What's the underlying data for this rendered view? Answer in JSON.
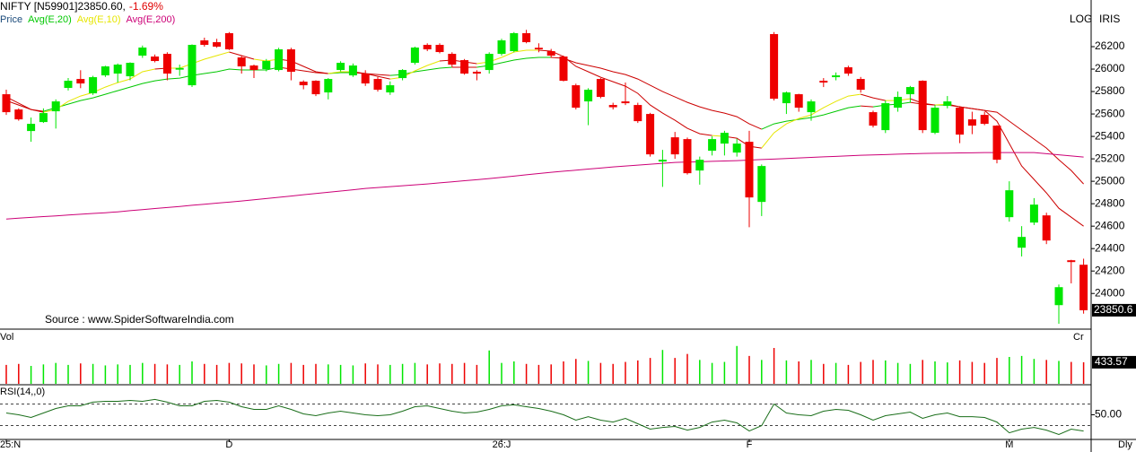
{
  "header": {
    "symbol": "NIFTY [N59901]23850.60,",
    "change": "-1.69%",
    "price_label": "Price",
    "log": "LOG",
    "iris": "IRIS",
    "source": "Source : www.SpiderSoftwareIndia.com",
    "period": "Dly"
  },
  "chart_data": [
    {
      "type": "candlestick",
      "categories": [
        "25:N",
        null,
        null,
        null,
        null,
        null,
        null,
        null,
        null,
        null,
        null,
        null,
        null,
        null,
        null,
        null,
        null,
        null,
        "D",
        null,
        null,
        null,
        null,
        null,
        null,
        null,
        null,
        null,
        null,
        null,
        null,
        null,
        null,
        null,
        null,
        null,
        null,
        null,
        null,
        null,
        "26:J",
        null,
        null,
        null,
        null,
        null,
        null,
        null,
        null,
        null,
        null,
        null,
        null,
        null,
        null,
        null,
        null,
        null,
        null,
        null,
        "F",
        null,
        null,
        null,
        null,
        null,
        null,
        null,
        null,
        null,
        null,
        null,
        null,
        null,
        null,
        null,
        null,
        null,
        null,
        null,
        null,
        "M",
        null,
        null,
        null,
        null,
        null,
        null
      ],
      "open": [
        25776,
        25640,
        25448,
        25528,
        25624,
        25832,
        25912,
        25784,
        25944,
        25960,
        25936,
        26120,
        26112,
        26136,
        25995,
        25856,
        26256,
        26240,
        26320,
        26104,
        26032,
        26000,
        25992,
        26176,
        25888,
        25896,
        25792,
        25992,
        25944,
        25960,
        25912,
        25792,
        25920,
        26056,
        26216,
        26216,
        26136,
        26080,
        25976,
        25992,
        26136,
        26160,
        26320,
        26190,
        26160,
        26112,
        25856,
        25712,
        25912,
        25680,
        25712,
        25680,
        25600,
        25176,
        25392,
        25376,
        25096,
        25272,
        25336,
        25256,
        25352,
        24816,
        26312,
        25696,
        25776,
        25616,
        25896,
        25928,
        26016,
        25912,
        25616,
        25456,
        25656,
        25776,
        25896,
        25432,
        25672,
        25656,
        25552,
        25592,
        25496,
        24680,
        24408,
        24632,
        24696,
        23896,
        24296,
        24256
      ],
      "high": [
        25816,
        25650,
        25568,
        25650,
        25730,
        25920,
        25990,
        25940,
        26030,
        26050,
        26060,
        26210,
        26130,
        26150,
        26040,
        26220,
        26280,
        26270,
        26330,
        26120,
        26040,
        26090,
        26190,
        26190,
        25900,
        25900,
        25920,
        26070,
        26050,
        25990,
        25930,
        25890,
        26000,
        26200,
        26230,
        26230,
        26150,
        26090,
        25990,
        26150,
        26270,
        26330,
        26350,
        26230,
        26180,
        26120,
        25870,
        25830,
        25920,
        25700,
        25880,
        25700,
        25610,
        25280,
        25440,
        25390,
        25220,
        25400,
        25450,
        25380,
        25450,
        25150,
        26330,
        25800,
        25780,
        25730,
        25920,
        25970,
        26030,
        25930,
        25630,
        25720,
        25800,
        25850,
        25900,
        25680,
        25760,
        25670,
        25620,
        25620,
        25500,
        25000,
        24600,
        24850,
        24720,
        24080,
        24300,
        24310
      ],
      "low": [
        25592,
        25540,
        25352,
        25520,
        25470,
        25810,
        25830,
        25770,
        25930,
        25880,
        25900,
        26100,
        26060,
        25900,
        25940,
        25840,
        26200,
        26190,
        26170,
        25960,
        25920,
        25980,
        25980,
        25900,
        25820,
        25760,
        25730,
        25980,
        25930,
        25850,
        25800,
        25770,
        25900,
        26040,
        26160,
        26140,
        26020,
        25950,
        25900,
        25960,
        26120,
        26150,
        26230,
        26150,
        26100,
        25890,
        25640,
        25500,
        25740,
        25640,
        25680,
        25520,
        25220,
        24950,
        25200,
        25060,
        24970,
        25230,
        25230,
        25220,
        24590,
        24690,
        25720,
        25600,
        25620,
        25540,
        25840,
        25900,
        25940,
        25790,
        25480,
        25430,
        25620,
        25700,
        25430,
        25420,
        25650,
        25340,
        25420,
        25500,
        25160,
        24640,
        24330,
        24610,
        24440,
        23730,
        24090,
        23820
      ],
      "close": [
        25616,
        25552,
        25512,
        25608,
        25712,
        25896,
        25872,
        25928,
        26024,
        26040,
        26056,
        26192,
        26072,
        25960,
        26010,
        26216,
        26216,
        26200,
        26176,
        26024,
        25992,
        26072,
        26176,
        25976,
        25856,
        25776,
        25912,
        26056,
        26032,
        25872,
        25816,
        25856,
        25992,
        26192,
        26176,
        26152,
        26040,
        25960,
        25960,
        26136,
        26256,
        26320,
        26240,
        26176,
        26120,
        25896,
        25656,
        25816,
        25752,
        25660,
        25696,
        25536,
        25240,
        25192,
        25240,
        25072,
        25192,
        25376,
        25432,
        25336,
        24856,
        25136,
        25736,
        25792,
        25656,
        25712,
        25880,
        25944,
        25960,
        25816,
        25496,
        25696,
        25752,
        25840,
        25456,
        25656,
        25712,
        25416,
        25496,
        25512,
        25192,
        24920,
        24504,
        24792,
        24472,
        24056,
        24280,
        23850.6
      ],
      "up_color": "#00e600",
      "down_color": "#ee0000",
      "ylim": [
        23690,
        26520
      ],
      "yticks": [
        24000,
        24200,
        24400,
        24600,
        24800,
        25000,
        25200,
        25400,
        25600,
        25800,
        26000,
        26200
      ],
      "series": [
        {
          "name": "Avg(E,20)",
          "color": "#00c800",
          "below_color": "#cc0000",
          "values": [
            25720,
            25680,
            25640,
            25624,
            25656,
            25688,
            25720,
            25744,
            25776,
            25808,
            25840,
            25872,
            25896,
            25912,
            25920,
            25944,
            25960,
            25976,
            26000,
            25992,
            25992,
            25992,
            26016,
            26000,
            25984,
            25968,
            25960,
            25968,
            25968,
            25960,
            25952,
            25944,
            25952,
            25976,
            25992,
            26008,
            26016,
            26016,
            26016,
            26032,
            26056,
            26080,
            26096,
            26104,
            26104,
            26096,
            26056,
            26032,
            26008,
            25976,
            25952,
            25912,
            25856,
            25800,
            25752,
            25704,
            25664,
            25632,
            25608,
            25576,
            25512,
            25464,
            25512,
            25536,
            25552,
            25568,
            25592,
            25624,
            25656,
            25672,
            25664,
            25680,
            25688,
            25704,
            25688,
            25680,
            25680,
            25664,
            25648,
            25632,
            25616,
            25536,
            25456,
            25376,
            25296,
            25192,
            25096,
            24976
          ]
        },
        {
          "name": "Avg(E,10)",
          "color": "#e6e600",
          "below_color": "#cc0000",
          "values": [
            25752,
            25696,
            25640,
            25616,
            25640,
            25712,
            25760,
            25792,
            25840,
            25880,
            25912,
            25976,
            26000,
            26008,
            26008,
            26048,
            26088,
            26120,
            26152,
            26120,
            26088,
            26072,
            26088,
            26072,
            26024,
            25976,
            25960,
            25976,
            25976,
            25960,
            25936,
            25912,
            25928,
            25984,
            26032,
            26072,
            26080,
            26064,
            26048,
            26064,
            26104,
            26152,
            26168,
            26168,
            26160,
            26112,
            26024,
            25976,
            25928,
            25888,
            25848,
            25784,
            25680,
            25608,
            25544,
            25472,
            25424,
            25408,
            25400,
            25384,
            25312,
            25296,
            25432,
            25512,
            25560,
            25592,
            25656,
            25712,
            25760,
            25776,
            25744,
            25720,
            25720,
            25736,
            25696,
            25680,
            25688,
            25664,
            25648,
            25632,
            25536,
            25336,
            25136,
            25016,
            24896,
            24760,
            24680,
            24600
          ]
        },
        {
          "name": "Avg(E,200)",
          "color": "#cc0077",
          "values": [
            24664,
            24671,
            24678,
            24685,
            24692,
            24699,
            24706,
            24713,
            24720,
            24728,
            24738,
            24747,
            24757,
            24766,
            24776,
            24786,
            24795,
            24805,
            24814,
            24824,
            24835,
            24846,
            24857,
            24868,
            24880,
            24891,
            24902,
            24913,
            24924,
            24936,
            24944,
            24952,
            24960,
            24968,
            24976,
            24986,
            24995,
            25005,
            25014,
            25024,
            25035,
            25046,
            25058,
            25069,
            25080,
            25090,
            25099,
            25109,
            25118,
            25128,
            25136,
            25144,
            25152,
            25160,
            25168,
            25171,
            25174,
            25178,
            25181,
            25184,
            25189,
            25194,
            25198,
            25203,
            25208,
            25213,
            25218,
            25222,
            25227,
            25232,
            25235,
            25238,
            25242,
            25245,
            25248,
            25250,
            25251,
            25253,
            25254,
            25256,
            25256,
            25256,
            25256,
            25256,
            25246,
            25236,
            25226,
            25216
          ]
        }
      ]
    },
    {
      "type": "bar",
      "title": "Vol",
      "unit": "Cr",
      "values": [
        380,
        400,
        360,
        390,
        420,
        380,
        410,
        400,
        370,
        390,
        380,
        420,
        400,
        390,
        380,
        450,
        400,
        380,
        420,
        410,
        390,
        370,
        400,
        420,
        380,
        400,
        390,
        380,
        370,
        410,
        390,
        380,
        400,
        420,
        390,
        410,
        400,
        420,
        380,
        670,
        420,
        450,
        400,
        380,
        390,
        450,
        500,
        460,
        420,
        400,
        440,
        470,
        520,
        680,
        520,
        600,
        480,
        420,
        440,
        760,
        560,
        480,
        720,
        470,
        450,
        480,
        400,
        420,
        380,
        440,
        480,
        470,
        420,
        400,
        480,
        450,
        430,
        470,
        440,
        420,
        520,
        540,
        560,
        500,
        480,
        460,
        440,
        433.57
      ],
      "ylim": [
        0,
        1080
      ]
    },
    {
      "type": "line",
      "title": "RSI(14,,0)",
      "color": "#1a6e1a",
      "values": [
        51.7,
        50,
        47.5,
        51.7,
        55.8,
        58.3,
        58.3,
        61.7,
        62.5,
        62.5,
        63.3,
        62.5,
        64.2,
        61.7,
        58.3,
        58.3,
        62.5,
        63.3,
        61.7,
        57.5,
        55,
        55,
        58.3,
        55,
        50.8,
        49.2,
        51.7,
        53.3,
        51.7,
        50,
        49.2,
        50,
        53.3,
        57.5,
        58.3,
        55.8,
        53.3,
        51.7,
        52.5,
        55,
        58.3,
        59.2,
        57.5,
        55.8,
        53.3,
        50,
        45,
        48.3,
        45,
        43.3,
        46.7,
        41.7,
        36.7,
        38.3,
        39.2,
        35.8,
        38.3,
        43.3,
        45,
        42.5,
        35,
        40,
        60,
        51.7,
        50,
        49.2,
        53.3,
        55,
        54.2,
        50,
        45,
        49.2,
        50.8,
        52.5,
        46.7,
        50,
        51.7,
        48.3,
        48.3,
        47.5,
        43.3,
        33.3,
        36.7,
        38.3,
        35.8,
        31.7,
        36.7,
        35
      ],
      "ylim": [
        28,
        77
      ],
      "yticks": [
        {
          "value": 50,
          "label": "50.00"
        }
      ],
      "levels": [
        40,
        60
      ]
    }
  ]
}
